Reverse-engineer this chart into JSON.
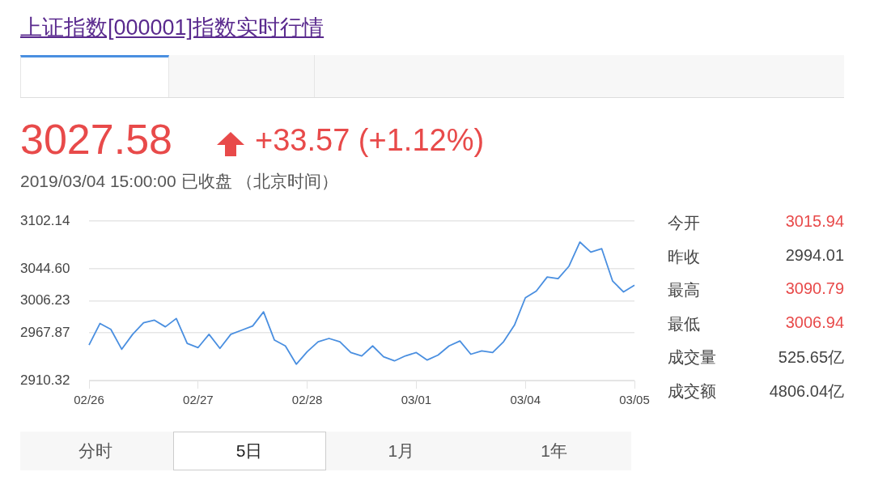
{
  "chart_data": {
    "type": "line",
    "title": "上证指数[000001]指数实时行情",
    "annotations": [
      "3027.58",
      "+33.57 (+1.12%)",
      "2019/03/04 15:00:00  已收盘 （北京时间）",
      "今开",
      "3015.94",
      "昨收",
      "2994.01",
      "最高",
      "3090.79",
      "最低",
      "3006.94",
      "成交量",
      "525.65亿",
      "成交额",
      "4806.04亿",
      "分时",
      "5日",
      "1月",
      "1年"
    ],
    "categories": [
      "02/26",
      null,
      null,
      null,
      null,
      null,
      null,
      null,
      null,
      null,
      "02/27",
      null,
      null,
      null,
      null,
      null,
      null,
      null,
      null,
      null,
      "02/28",
      null,
      null,
      null,
      null,
      null,
      null,
      null,
      null,
      null,
      "03/01",
      null,
      null,
      null,
      null,
      null,
      null,
      null,
      null,
      null,
      "03/04",
      null,
      null,
      null,
      null,
      null,
      null,
      null,
      null,
      null,
      "03/05"
    ],
    "ylim": [
      2910.32,
      3102.14
    ],
    "yticks": [
      {
        "value": 2910.32,
        "label": "2910.32"
      },
      {
        "value": 2967.87,
        "label": "2967.87"
      },
      {
        "value": 3006.23,
        "label": "3006.23"
      },
      {
        "value": 3044.6,
        "label": "3044.60"
      },
      {
        "value": 3102.14,
        "label": "3102.14"
      }
    ],
    "grid": "y",
    "marker": "none",
    "line_style": "solid",
    "series": [
      {
        "color": "#4a8fe0",
        "values": [
          2953,
          2979,
          2972,
          2948,
          2966,
          2980,
          2983,
          2975,
          2985,
          2955,
          2950,
          2966,
          2949,
          2966,
          2971,
          2976,
          2993,
          2959,
          2952,
          2930,
          2945,
          2957,
          2961,
          2957,
          2944,
          2940,
          2952,
          2939,
          2934,
          2940,
          2944,
          2935,
          2941,
          2952,
          2958,
          2942,
          2946,
          2944,
          2957,
          2977,
          3010,
          3018,
          3035,
          3033,
          3048,
          3077,
          3065,
          3069,
          3030,
          3017,
          3025
        ]
      }
    ]
  }
}
